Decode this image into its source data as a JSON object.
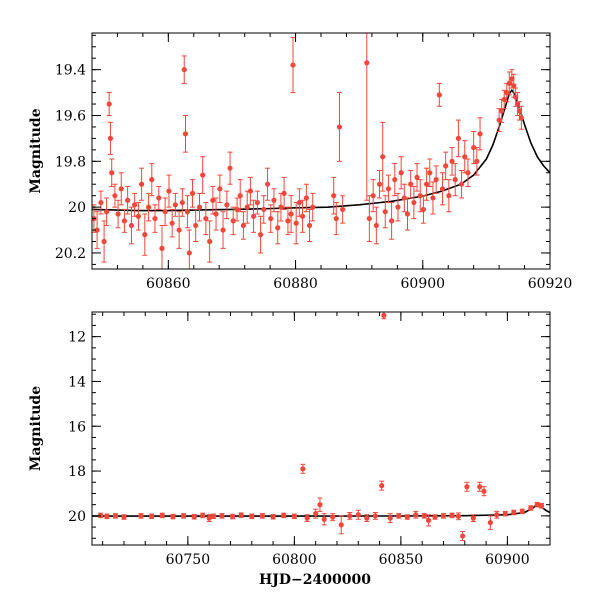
{
  "chart_data": [
    {
      "type": "scatter",
      "ylabel": "Magnitude",
      "xlabel": "",
      "xlim": [
        60848,
        60920
      ],
      "ylim": [
        20.27,
        19.24
      ],
      "y_inverted": true,
      "x_ticks": [
        60860,
        60880,
        60900,
        60920
      ],
      "y_ticks": [
        19.4,
        19.6,
        19.8,
        20,
        20.2
      ],
      "x_tick_labels": [
        "60860",
        "60880",
        "60900",
        "60920"
      ],
      "y_tick_labels": [
        "19.4",
        "19.6",
        "19.8",
        "20",
        "20.2"
      ],
      "series": [
        {
          "kind": "points_with_errorbars",
          "color": "#f2473a",
          "points": [
            [
              60848.3,
              20.05,
              0.06
            ],
            [
              60848.8,
              20.1,
              0.08
            ],
            [
              60849.4,
              19.98,
              0.05
            ],
            [
              60849.9,
              20.15,
              0.09
            ],
            [
              60850.3,
              20.02,
              0.06
            ],
            [
              60850.7,
              19.55,
              0.05
            ],
            [
              60850.9,
              19.7,
              0.07
            ],
            [
              60851.1,
              19.85,
              0.06
            ],
            [
              60851.6,
              19.95,
              0.05
            ],
            [
              60852.1,
              20.03,
              0.06
            ],
            [
              60852.6,
              19.92,
              0.07
            ],
            [
              60853.1,
              20.06,
              0.05
            ],
            [
              60853.6,
              19.97,
              0.06
            ],
            [
              60854.2,
              20.08,
              0.08
            ],
            [
              60854.7,
              19.99,
              0.05
            ],
            [
              60855.3,
              20.04,
              0.06
            ],
            [
              60855.8,
              19.9,
              0.07
            ],
            [
              60856.3,
              20.12,
              0.09
            ],
            [
              60856.9,
              20.0,
              0.06
            ],
            [
              60857.4,
              19.88,
              0.07
            ],
            [
              60857.9,
              20.05,
              0.06
            ],
            [
              60858.5,
              19.96,
              0.05
            ],
            [
              60859.0,
              20.18,
              0.1
            ],
            [
              60859.5,
              20.02,
              0.06
            ],
            [
              60860.1,
              19.93,
              0.07
            ],
            [
              60860.6,
              20.07,
              0.06
            ],
            [
              60861.1,
              19.99,
              0.05
            ],
            [
              60861.7,
              20.1,
              0.08
            ],
            [
              60862.2,
              19.98,
              0.06
            ],
            [
              60862.5,
              19.4,
              0.06
            ],
            [
              60862.7,
              19.68,
              0.08
            ],
            [
              60863.0,
              20.02,
              0.07
            ],
            [
              60863.3,
              20.2,
              0.1
            ],
            [
              60863.8,
              19.94,
              0.06
            ],
            [
              60864.3,
              20.08,
              0.07
            ],
            [
              60864.9,
              20.0,
              0.06
            ],
            [
              60865.4,
              19.86,
              0.08
            ],
            [
              60865.9,
              20.05,
              0.07
            ],
            [
              60866.5,
              20.15,
              0.09
            ],
            [
              60867.0,
              19.97,
              0.06
            ],
            [
              60867.5,
              20.03,
              0.07
            ],
            [
              60868.1,
              19.92,
              0.06
            ],
            [
              60868.6,
              20.1,
              0.08
            ],
            [
              60869.2,
              19.99,
              0.06
            ],
            [
              60869.7,
              19.83,
              0.07
            ],
            [
              60870.2,
              20.06,
              0.06
            ],
            [
              60870.8,
              20.01,
              0.05
            ],
            [
              60871.3,
              19.95,
              0.07
            ],
            [
              60871.8,
              20.08,
              0.06
            ],
            [
              60872.4,
              20.0,
              0.07
            ],
            [
              60872.9,
              19.93,
              0.06
            ],
            [
              60873.4,
              20.04,
              0.07
            ],
            [
              60874.0,
              19.98,
              0.05
            ],
            [
              60874.5,
              20.12,
              0.08
            ],
            [
              60875.0,
              20.01,
              0.06
            ],
            [
              60875.6,
              19.9,
              0.07
            ],
            [
              60876.1,
              20.05,
              0.06
            ],
            [
              60876.6,
              19.97,
              0.05
            ],
            [
              60877.2,
              20.09,
              0.07
            ],
            [
              60877.7,
              20.0,
              0.06
            ],
            [
              60878.2,
              19.94,
              0.07
            ],
            [
              60878.8,
              20.06,
              0.06
            ],
            [
              60879.3,
              20.03,
              0.08
            ],
            [
              60879.6,
              19.38,
              0.12
            ],
            [
              60880.1,
              20.07,
              0.09
            ],
            [
              60880.6,
              19.98,
              0.06
            ],
            [
              60881.1,
              20.04,
              0.07
            ],
            [
              60881.7,
              19.96,
              0.06
            ],
            [
              60882.2,
              20.08,
              0.07
            ],
            [
              60882.7,
              20.0,
              0.06
            ],
            [
              60886.0,
              19.95,
              0.08
            ],
            [
              60886.4,
              20.05,
              0.07
            ],
            [
              60886.9,
              19.65,
              0.15
            ],
            [
              60887.4,
              20.01,
              0.06
            ],
            [
              60891.2,
              19.37,
              0.6
            ],
            [
              60891.6,
              20.05,
              0.1
            ],
            [
              60892.2,
              19.95,
              0.07
            ],
            [
              60892.7,
              20.08,
              0.08
            ],
            [
              60893.2,
              19.9,
              0.06
            ],
            [
              60893.7,
              19.78,
              0.15
            ],
            [
              60894.1,
              20.02,
              0.07
            ],
            [
              60894.6,
              19.92,
              0.06
            ],
            [
              60895.1,
              20.06,
              0.08
            ],
            [
              60895.6,
              19.88,
              0.07
            ],
            [
              60896.1,
              20.0,
              0.06
            ],
            [
              60896.6,
              19.85,
              0.07
            ],
            [
              60897.1,
              19.96,
              0.06
            ],
            [
              60897.6,
              20.03,
              0.07
            ],
            [
              60898.1,
              19.9,
              0.06
            ],
            [
              60898.6,
              19.98,
              0.07
            ],
            [
              60899.1,
              19.87,
              0.06
            ],
            [
              60899.6,
              19.95,
              0.07
            ],
            [
              60900.1,
              20.01,
              0.06
            ],
            [
              60900.6,
              19.9,
              0.07
            ],
            [
              60901.1,
              19.85,
              0.06
            ],
            [
              60901.6,
              19.96,
              0.07
            ],
            [
              60902.1,
              19.88,
              0.06
            ],
            [
              60902.6,
              19.51,
              0.05
            ],
            [
              60903.1,
              19.92,
              0.07
            ],
            [
              60903.6,
              19.82,
              0.06
            ],
            [
              60904.1,
              19.95,
              0.07
            ],
            [
              60904.6,
              19.8,
              0.06
            ],
            [
              60905.1,
              19.88,
              0.07
            ],
            [
              60905.6,
              19.7,
              0.08
            ],
            [
              60906.1,
              19.9,
              0.06
            ],
            [
              60906.6,
              19.78,
              0.07
            ],
            [
              60907.1,
              19.85,
              0.06
            ],
            [
              60908.0,
              19.74,
              0.07
            ],
            [
              60908.5,
              19.8,
              0.06
            ],
            [
              60909.0,
              19.68,
              0.07
            ],
            [
              60912.0,
              19.62,
              0.05
            ],
            [
              60912.4,
              19.58,
              0.05
            ],
            [
              60912.8,
              19.53,
              0.04
            ],
            [
              60913.2,
              19.5,
              0.04
            ],
            [
              60913.6,
              19.46,
              0.05
            ],
            [
              60914.0,
              19.44,
              0.04
            ],
            [
              60914.3,
              19.47,
              0.05
            ],
            [
              60914.6,
              19.52,
              0.04
            ],
            [
              60914.9,
              19.55,
              0.05
            ],
            [
              60915.2,
              19.58,
              0.04
            ],
            [
              60915.5,
              19.61,
              0.05
            ]
          ]
        },
        {
          "kind": "model_curve",
          "color": "#000000",
          "x": [
            60848,
            60855,
            60860,
            60865,
            60870,
            60875,
            60880,
            60885,
            60890,
            60895,
            60900,
            60903,
            60906,
            60908,
            60910,
            60911,
            60912,
            60913,
            60913.6,
            60914,
            60914.4,
            60915,
            60916,
            60917,
            60918,
            60919,
            60920
          ],
          "y": [
            20.01,
            20.015,
            20.015,
            20.012,
            20.01,
            20.007,
            20.003,
            20.0,
            19.99,
            19.975,
            19.952,
            19.93,
            19.9,
            19.86,
            19.79,
            19.73,
            19.65,
            19.56,
            19.505,
            19.49,
            19.505,
            19.55,
            19.64,
            19.72,
            19.78,
            19.82,
            19.85
          ]
        }
      ]
    },
    {
      "type": "scatter",
      "ylabel": "Magnitude",
      "xlabel": "HJD−2400000",
      "xlim": [
        60705,
        60920
      ],
      "ylim": [
        21.3,
        10.9
      ],
      "y_inverted": true,
      "x_ticks": [
        60750,
        60800,
        60850,
        60900
      ],
      "y_ticks": [
        12,
        14,
        16,
        18,
        20
      ],
      "x_tick_labels": [
        "60750",
        "60800",
        "60850",
        "60900"
      ],
      "y_tick_labels": [
        "12",
        "14",
        "16",
        "18",
        "20"
      ],
      "series": [
        {
          "kind": "points_with_errorbars",
          "color": "#f2473a",
          "points": [
            [
              60709,
              19.98,
              0.1
            ],
            [
              60712,
              20.02,
              0.1
            ],
            [
              60716,
              20.0,
              0.1
            ],
            [
              60720,
              20.05,
              0.1
            ],
            [
              60728,
              20.0,
              0.1
            ],
            [
              60733,
              20.02,
              0.1
            ],
            [
              60738,
              19.98,
              0.1
            ],
            [
              60743,
              20.03,
              0.1
            ],
            [
              60748,
              20.0,
              0.1
            ],
            [
              60753,
              20.04,
              0.1
            ],
            [
              60757,
              19.98,
              0.1
            ],
            [
              60760,
              20.1,
              0.15
            ],
            [
              60762,
              20.02,
              0.1
            ],
            [
              60766,
              20.0,
              0.1
            ],
            [
              60771,
              20.03,
              0.1
            ],
            [
              60775,
              19.97,
              0.1
            ],
            [
              60780,
              20.02,
              0.1
            ],
            [
              60785,
              20.0,
              0.1
            ],
            [
              60790,
              20.04,
              0.1
            ],
            [
              60795,
              19.98,
              0.1
            ],
            [
              60800,
              20.02,
              0.1
            ],
            [
              60804,
              17.9,
              0.2
            ],
            [
              60806,
              20.1,
              0.15
            ],
            [
              60810,
              19.9,
              0.2
            ],
            [
              60812,
              19.5,
              0.3
            ],
            [
              60814,
              20.15,
              0.25
            ],
            [
              60818,
              20.05,
              0.15
            ],
            [
              60822,
              20.4,
              0.4
            ],
            [
              60826,
              20.0,
              0.15
            ],
            [
              60830,
              19.95,
              0.2
            ],
            [
              60834,
              20.1,
              0.15
            ],
            [
              60838,
              20.0,
              0.15
            ],
            [
              60841,
              18.65,
              0.2
            ],
            [
              60842,
              11.05,
              0.15
            ],
            [
              60845,
              20.1,
              0.2
            ],
            [
              60849,
              20.0,
              0.1
            ],
            [
              60853,
              20.05,
              0.1
            ],
            [
              60857,
              19.95,
              0.15
            ],
            [
              60861,
              20.0,
              0.1
            ],
            [
              60863,
              20.2,
              0.25
            ],
            [
              60866,
              20.05,
              0.1
            ],
            [
              60870,
              20.0,
              0.1
            ],
            [
              60874,
              19.98,
              0.1
            ],
            [
              60877,
              20.02,
              0.15
            ],
            [
              60879,
              20.9,
              0.2
            ],
            [
              60881,
              18.7,
              0.2
            ],
            [
              60884,
              20.1,
              0.15
            ],
            [
              60887,
              18.7,
              0.2
            ],
            [
              60889,
              18.9,
              0.2
            ],
            [
              60892,
              20.3,
              0.3
            ],
            [
              60895,
              19.95,
              0.15
            ],
            [
              60899,
              19.9,
              0.1
            ],
            [
              60903,
              19.85,
              0.1
            ],
            [
              60907,
              19.8,
              0.1
            ],
            [
              60911,
              19.65,
              0.1
            ],
            [
              60914,
              19.5,
              0.1
            ],
            [
              60916,
              19.55,
              0.1
            ]
          ]
        },
        {
          "kind": "model_curve",
          "color": "#000000",
          "x": [
            60705,
            60750,
            60800,
            60850,
            60880,
            60900,
            60908,
            60912,
            60914,
            60916,
            60918,
            60920
          ],
          "y": [
            20.01,
            20.01,
            20.01,
            20.005,
            19.99,
            19.95,
            19.85,
            19.65,
            19.49,
            19.6,
            19.75,
            19.85
          ]
        }
      ]
    }
  ]
}
